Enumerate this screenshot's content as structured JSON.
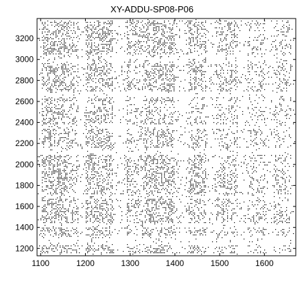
{
  "chart_data": {
    "type": "heatmap",
    "title": "XY-ADDU-SP08-P06",
    "xlabel": "",
    "ylabel": "",
    "xlim": [
      1092,
      1670
    ],
    "ylim": [
      1130,
      3390
    ],
    "xticks": [
      1100,
      1200,
      1300,
      1400,
      1500,
      1600
    ],
    "yticks": [
      1200,
      1400,
      1600,
      1800,
      2000,
      2200,
      2400,
      2600,
      2800,
      3000,
      3200
    ],
    "colors": {
      "foreground": "#000000",
      "background": "#ffffff"
    },
    "grid": false,
    "legend": "none",
    "vertical_bands": [
      {
        "x0": 1100,
        "x1": 1160,
        "density": 0.55
      },
      {
        "x0": 1160,
        "x1": 1185,
        "density": 0.35
      },
      {
        "x0": 1185,
        "x1": 1200,
        "density": 0.08
      },
      {
        "x0": 1200,
        "x1": 1260,
        "density": 0.5
      },
      {
        "x0": 1260,
        "x1": 1290,
        "density": 0.1
      },
      {
        "x0": 1290,
        "x1": 1300,
        "density": 0.5
      },
      {
        "x0": 1300,
        "x1": 1330,
        "density": 0.3
      },
      {
        "x0": 1330,
        "x1": 1400,
        "density": 0.5
      },
      {
        "x0": 1400,
        "x1": 1430,
        "density": 0.12
      },
      {
        "x0": 1430,
        "x1": 1470,
        "density": 0.45
      },
      {
        "x0": 1470,
        "x1": 1490,
        "density": 0.1
      },
      {
        "x0": 1490,
        "x1": 1540,
        "density": 0.35
      },
      {
        "x0": 1540,
        "x1": 1560,
        "density": 0.12
      },
      {
        "x0": 1560,
        "x1": 1600,
        "density": 0.3
      },
      {
        "x0": 1600,
        "x1": 1620,
        "density": 0.1
      },
      {
        "x0": 1620,
        "x1": 1660,
        "density": 0.3
      }
    ],
    "horizontal_bands": [
      {
        "y0": 1150,
        "y1": 1240,
        "density": 0.6
      },
      {
        "y0": 1240,
        "y1": 1330,
        "density": 0.1
      },
      {
        "y0": 1330,
        "y1": 1400,
        "density": 0.65
      },
      {
        "y0": 1400,
        "y1": 1440,
        "density": 0.1
      },
      {
        "y0": 1440,
        "y1": 1680,
        "density": 0.6
      },
      {
        "y0": 1680,
        "y1": 1720,
        "density": 0.2
      },
      {
        "y0": 1720,
        "y1": 2100,
        "density": 0.6
      },
      {
        "y0": 2100,
        "y1": 2160,
        "density": 0.15
      },
      {
        "y0": 2160,
        "y1": 2340,
        "density": 0.5
      },
      {
        "y0": 2340,
        "y1": 2390,
        "density": 0.15
      },
      {
        "y0": 2390,
        "y1": 2550,
        "density": 0.5
      },
      {
        "y0": 2550,
        "y1": 2600,
        "density": 0.25
      },
      {
        "y0": 2600,
        "y1": 2650,
        "density": 0.55
      },
      {
        "y0": 2650,
        "y1": 2700,
        "density": 0.1
      },
      {
        "y0": 2700,
        "y1": 2960,
        "density": 0.6
      },
      {
        "y0": 2960,
        "y1": 3050,
        "density": 0.25
      },
      {
        "y0": 3050,
        "y1": 3380,
        "density": 0.6
      }
    ]
  }
}
